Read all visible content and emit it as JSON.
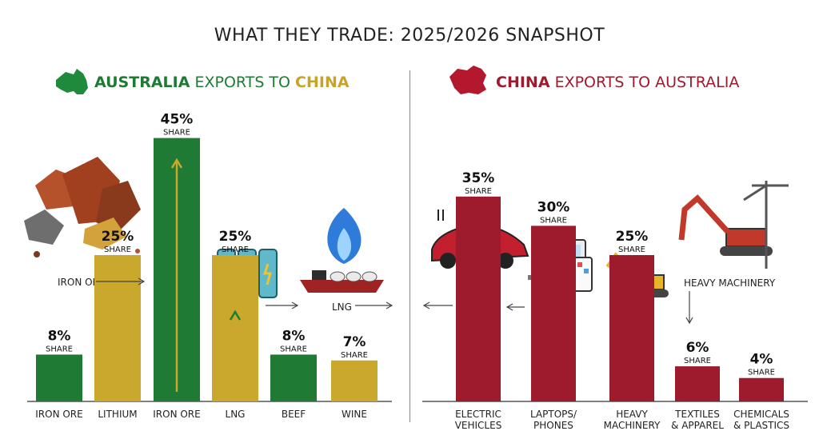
{
  "title": "WHAT THEY TRADE: 2025/2026 SNAPSHOT",
  "panels": {
    "au": {
      "pre": "AUSTRALIA",
      "mid": " EXPORTS TO ",
      "post": "CHINA"
    },
    "cn": {
      "pre": "CHINA",
      "mid": " EXPORTS TO AUSTRALIA"
    }
  },
  "share_word": "SHARE",
  "annotations": {
    "iron_ore": "IRON ORE",
    "lng": "LNG",
    "heavy_machinery": "HEAVY MACHINERY"
  },
  "colors": {
    "green": "#1f7a34",
    "gold": "#c9a82c",
    "red": "#9e1b2e",
    "au_flag": "#1f8a3c",
    "cn_flag": "#b3182e"
  },
  "chart_data": [
    {
      "type": "bar",
      "panel": "AUSTRALIA EXPORTS TO CHINA",
      "unit": "% share",
      "categories": [
        "IRON ORE",
        "LITHIUM",
        "IRON ORE",
        "LNG",
        "BEEF",
        "WINE"
      ],
      "values": [
        8,
        25,
        45,
        25,
        8,
        7
      ],
      "labels": [
        "8%",
        "25%",
        "45%",
        "25%",
        "8%",
        "7%"
      ],
      "bar_colors": [
        "#1f7a34",
        "#c9a82c",
        "#1f7a34",
        "#c9a82c",
        "#1f7a34",
        "#c9a82c"
      ]
    },
    {
      "type": "bar",
      "panel": "CHINA EXPORTS TO AUSTRALIA",
      "unit": "% share",
      "categories": [
        "ELECTRIC VEHICLES",
        "LAPTOPS/ PHONES",
        "HEAVY MACHINERY",
        "TEXTILES & APPAREL",
        "CHEMICALS & PLASTICS"
      ],
      "values": [
        35,
        30,
        25,
        6,
        4
      ],
      "labels": [
        "35%",
        "30%",
        "25%",
        "6%",
        "4%"
      ],
      "bar_colors": [
        "#9e1b2e",
        "#9e1b2e",
        "#9e1b2e",
        "#9e1b2e",
        "#9e1b2e"
      ]
    }
  ]
}
